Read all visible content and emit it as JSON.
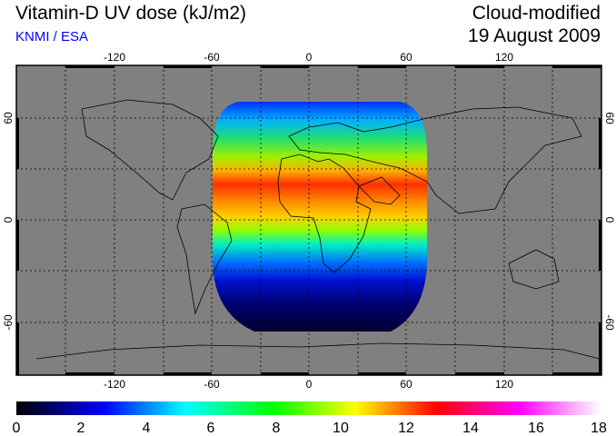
{
  "header": {
    "title": "Vitamin-D UV dose (kJ/m2)",
    "credit": "KNMI / ESA",
    "mode": "Cloud-modified",
    "date": "19 August 2009"
  },
  "map": {
    "lon_ticks": [
      "-120",
      "-60",
      "0",
      "60",
      "120"
    ],
    "lat_ticks_left": [
      "60",
      "0",
      "-60"
    ],
    "lat_ticks_right": [
      "60",
      "0",
      "-60"
    ],
    "ocean_land_color": "#808080"
  },
  "colorbar": {
    "labels": [
      "0",
      "2",
      "4",
      "6",
      "8",
      "10",
      "12",
      "14",
      "16",
      "18"
    ],
    "colors": [
      "#000000",
      "#0000ff",
      "#00ffff",
      "#00ff00",
      "#ffff00",
      "#ff0000",
      "#ff00ff",
      "#ffffff"
    ]
  }
}
